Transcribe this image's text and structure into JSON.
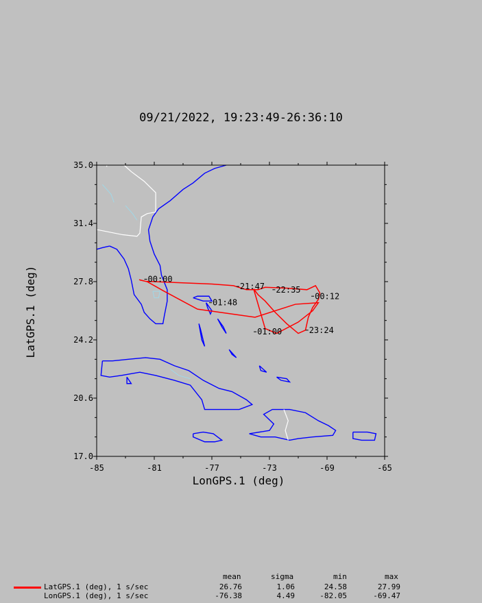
{
  "title": "09/21/2022, 19:23:49-26:36:10",
  "colors": {
    "background": "#c0c0c0",
    "track": "#ff0000",
    "coast": "#0000ff",
    "border": "#ffffff",
    "lake": "#a0d8e8"
  },
  "chart_data": {
    "type": "line",
    "xlabel": "LonGPS.1 (deg)",
    "ylabel": "LatGPS.1 (deg)",
    "xlim": [
      -85,
      -65
    ],
    "ylim": [
      17.0,
      35.0
    ],
    "x_ticks": [
      "-85",
      "-81",
      "-77",
      "-73",
      "-69",
      "-65"
    ],
    "y_ticks": [
      "17.0",
      "20.6",
      "24.2",
      "27.8",
      "31.4",
      "35.0"
    ],
    "series": [
      {
        "name": "LatGPS.1 (deg), 1 s/sec",
        "x": [
          -82.05,
          -81.6,
          -77.0,
          -75.5,
          -74.6,
          -73.8,
          -73.3,
          -71.8,
          -70.4,
          -69.8,
          -69.5,
          -69.6,
          -70.0,
          -70.3,
          -70.5,
          -71.0,
          -71.8,
          -72.6,
          -73.3,
          -73.8,
          -74.1,
          -73.3,
          -72.5,
          -71.0,
          -70.0,
          -69.6,
          -71.2,
          -74.0,
          -78.0,
          -80.3,
          -81.5,
          -82.0
        ],
        "y": [
          27.92,
          27.82,
          27.65,
          27.55,
          27.3,
          27.3,
          27.45,
          27.4,
          27.3,
          27.55,
          27.1,
          26.7,
          26.2,
          25.6,
          24.8,
          24.6,
          25.2,
          25.9,
          26.6,
          27.0,
          27.35,
          24.9,
          24.6,
          25.3,
          26.0,
          26.5,
          26.4,
          25.6,
          26.1,
          27.2,
          27.8,
          27.9
        ]
      }
    ],
    "time_labels": [
      {
        "text": "21:47",
        "lon": -75.1,
        "lat": 27.5
      },
      {
        "text": "22:35",
        "lon": -72.6,
        "lat": 27.3
      },
      {
        "text": "00:12",
        "lon": -69.9,
        "lat": 26.9
      },
      {
        "text": "23:24",
        "lon": -70.3,
        "lat": 24.8
      },
      {
        "text": "01:00",
        "lon": -73.9,
        "lat": 24.7
      },
      {
        "text": "01:48",
        "lon": -77.0,
        "lat": 26.5
      },
      {
        "text": "00:00",
        "lon": -81.5,
        "lat": 27.95
      }
    ]
  },
  "stats": {
    "headers": [
      "mean",
      "sigma",
      "min",
      "max"
    ],
    "rows": [
      {
        "label": "LatGPS.1 (deg), 1 s/sec",
        "mean": "26.76",
        "sigma": "1.06",
        "min": "24.58",
        "max": "27.99"
      },
      {
        "label": "LonGPS.1 (deg), 1 s/sec",
        "mean": "-76.38",
        "sigma": "4.49",
        "min": "-82.05",
        "max": "-69.47"
      }
    ]
  }
}
